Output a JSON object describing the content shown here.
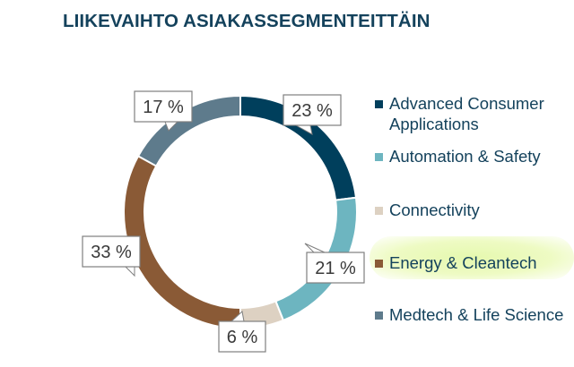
{
  "title": "LIIKEVAIHTO ASIAKASSEGMENTEITTÄIN",
  "chart_data": {
    "type": "pie",
    "donut": true,
    "title": "LIIKEVAIHTO ASIAKASSEGMENTEITTÄIN",
    "categories": [
      "Advanced Consumer Applications",
      "Automation & Safety",
      "Connectivity",
      "Energy & Cleantech",
      "Medtech & Life Science"
    ],
    "values": [
      23,
      21,
      6,
      33,
      17
    ],
    "labels": [
      "23 %",
      "21 %",
      "6 %",
      "33 %",
      "17 %"
    ],
    "colors": [
      "#003f5c",
      "#6db5c0",
      "#ddd1c2",
      "#8a5a36",
      "#5e7b8c"
    ],
    "legend_placement": "right",
    "legend": [
      {
        "label": "Advanced Consumer Applications",
        "color": "#003f5c"
      },
      {
        "label": "Automation & Safety",
        "color": "#6db5c0"
      },
      {
        "label": "Connectivity",
        "color": "#ddd1c2"
      },
      {
        "label": "Energy & Cleantech",
        "color": "#8a5a36",
        "highlighted": true
      },
      {
        "label": "Medtech & Life Science",
        "color": "#5e7b8c"
      }
    ]
  }
}
